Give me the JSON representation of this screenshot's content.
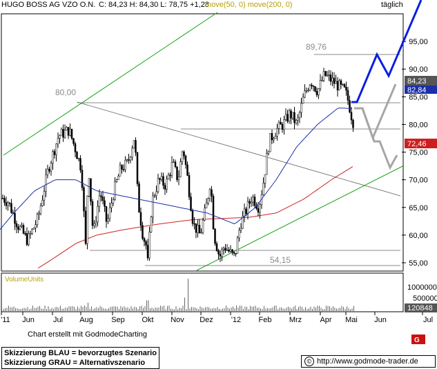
{
  "header": {
    "symbol": "HUGO BOSS AG VZO O.N.",
    "quote": "C: 84,23 H: 84,30 L: 78,75 +1,28",
    "indicators": "move(50, 0) move(200, 0)",
    "period": "täglich"
  },
  "volume_label": "VolumeUnits",
  "credit": "Chart erstellt mit GodmodeCharting",
  "legend": {
    "blue": "Skizzierung BLAU = bevorzugtes Szenario",
    "grey": "Skizzierung GRAU = Alternativszenario"
  },
  "footer": {
    "copyright_symbol": "©",
    "url": "http://www.godmode-trader.de"
  },
  "colors": {
    "price": "#000000",
    "ma50": "#1a2fa8",
    "ma200": "#cc2020",
    "trend_green": "#12a012",
    "scenario_blue": "#0a1fe0",
    "scenario_grey": "#a6a6a6",
    "last_badge": "#555555",
    "ma50_badge": "#1a2fa8",
    "ma200_badge": "#cc2020"
  },
  "chart_data": {
    "type": "candlestick",
    "ylim": [
      53.5,
      100
    ],
    "yticks": [
      "95,00",
      "90,00",
      "85,00",
      "80,00",
      "75,00",
      "70,00",
      "65,00",
      "60,00",
      "55,00"
    ],
    "yticks_values": [
      95,
      90,
      85,
      80,
      75,
      70,
      65,
      60,
      55
    ],
    "xlabels": [
      "'11",
      "Jun",
      "Jul",
      "Aug",
      "Sep",
      "Okt",
      "Nov",
      "Dez",
      "'12",
      "Feb",
      "Mrz",
      "Apr",
      "Mai",
      "Jun",
      "Jul"
    ],
    "annotations": [
      {
        "text": "80,00",
        "value": 80.0
      },
      {
        "text": "89,76",
        "value": 89.76
      },
      {
        "text": "54,15",
        "value": 54.15
      }
    ],
    "price_badges": [
      {
        "text": "84,23",
        "value": 84.23,
        "role": "last"
      },
      {
        "text": "82,84",
        "value": 82.84,
        "role": "ma50"
      },
      {
        "text": "72,46",
        "value": 72.46,
        "role": "ma200"
      }
    ],
    "price_keypoints": [
      [
        0,
        67
      ],
      [
        12,
        66
      ],
      [
        25,
        62
      ],
      [
        40,
        59
      ],
      [
        55,
        63
      ],
      [
        70,
        72
      ],
      [
        85,
        78
      ],
      [
        100,
        79
      ],
      [
        108,
        76
      ],
      [
        118,
        72
      ],
      [
        124,
        58
      ],
      [
        128,
        73
      ],
      [
        135,
        60
      ],
      [
        145,
        68
      ],
      [
        155,
        62
      ],
      [
        165,
        68
      ],
      [
        175,
        72
      ],
      [
        185,
        73
      ],
      [
        195,
        78
      ],
      [
        200,
        66
      ],
      [
        207,
        60
      ],
      [
        212,
        58
      ],
      [
        214,
        55
      ],
      [
        220,
        66
      ],
      [
        230,
        70
      ],
      [
        240,
        69
      ],
      [
        250,
        73
      ],
      [
        258,
        70
      ],
      [
        265,
        76
      ],
      [
        272,
        70
      ],
      [
        280,
        62
      ],
      [
        290,
        60
      ],
      [
        300,
        66
      ],
      [
        305,
        70
      ],
      [
        310,
        60
      ],
      [
        318,
        56
      ],
      [
        325,
        58
      ],
      [
        332,
        57
      ],
      [
        340,
        56
      ],
      [
        348,
        62
      ],
      [
        355,
        64
      ],
      [
        365,
        67
      ],
      [
        375,
        65
      ],
      [
        382,
        70
      ],
      [
        390,
        77
      ],
      [
        400,
        79
      ],
      [
        410,
        80
      ],
      [
        420,
        82
      ],
      [
        430,
        80
      ],
      [
        440,
        85
      ],
      [
        450,
        88
      ],
      [
        460,
        86
      ],
      [
        470,
        89
      ],
      [
        480,
        88
      ],
      [
        490,
        87
      ],
      [
        500,
        86
      ],
      [
        505,
        84
      ],
      [
        510,
        81
      ],
      [
        513,
        80
      ]
    ],
    "ma50_keypoints": [
      [
        0,
        61
      ],
      [
        20,
        64
      ],
      [
        50,
        68
      ],
      [
        80,
        70
      ],
      [
        110,
        70
      ],
      [
        140,
        68
      ],
      [
        180,
        67
      ],
      [
        220,
        66
      ],
      [
        260,
        65
      ],
      [
        300,
        64
      ],
      [
        340,
        62
      ],
      [
        370,
        65
      ],
      [
        400,
        70
      ],
      [
        430,
        76
      ],
      [
        460,
        80
      ],
      [
        490,
        83
      ],
      [
        512,
        82.84
      ]
    ],
    "ma200_keypoints": [
      [
        55,
        54
      ],
      [
        80,
        56
      ],
      [
        110,
        58.5
      ],
      [
        140,
        60
      ],
      [
        180,
        61
      ],
      [
        230,
        62
      ],
      [
        280,
        62.8
      ],
      [
        320,
        63
      ],
      [
        360,
        63.2
      ],
      [
        400,
        64
      ],
      [
        440,
        66.5
      ],
      [
        480,
        70
      ],
      [
        512,
        72.46
      ]
    ],
    "volume": {
      "yticks": [
        "1000000",
        "500000"
      ],
      "yticks_values": [
        1000000,
        500000
      ],
      "last": "120848",
      "last_value": 120848
    }
  }
}
